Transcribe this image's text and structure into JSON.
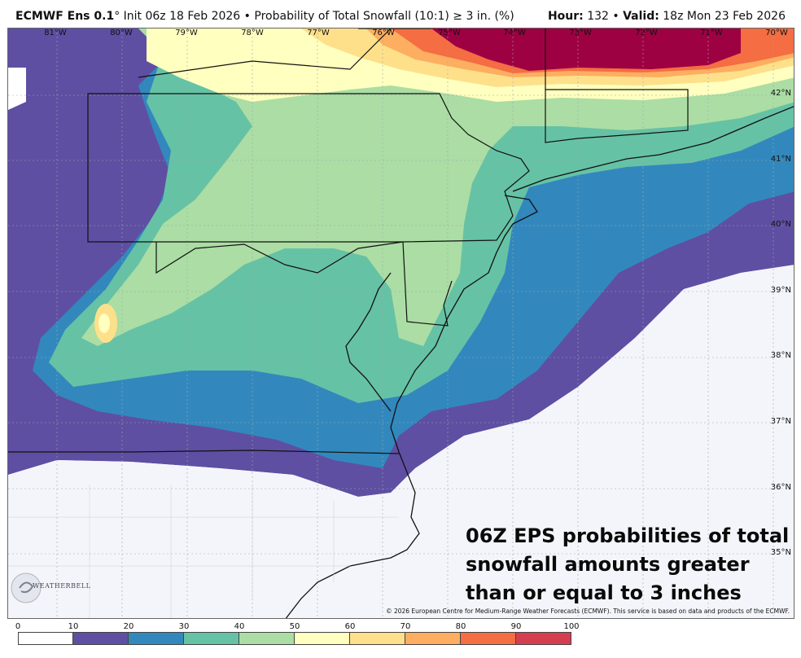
{
  "header": {
    "model": "ECMWF Ens 0.1",
    "degree_mark": "°",
    "init": " Init 06z 18 Feb 2026",
    "separator": " • ",
    "product": "Probability of Total Snowfall (10:1) ≥ 3 in. (%)",
    "hour_label": "Hour:",
    "hour_value": " 132",
    "valid_label": "Valid:",
    "valid_value": " 18z Mon 23 Feb 2026"
  },
  "map": {
    "longitude_labels": [
      "81°W",
      "80°W",
      "79°W",
      "78°W",
      "77°W",
      "76°W",
      "75°W",
      "74°W",
      "73°W",
      "72°W",
      "71°W",
      "70°W"
    ],
    "latitude_labels": [
      "42°N",
      "41°N",
      "40°N",
      "39°N",
      "38°N",
      "37°N",
      "36°N",
      "35°N"
    ],
    "annotation_lines": [
      "06Z EPS probabilities of total",
      "snowfall amounts greater",
      "than or equal to 3 inches"
    ],
    "copyright": "© 2026 European Centre for Medium-Range Weather Forecasts (ECMWF). This service is based on data and products of the ECMWF.",
    "logo_text": "WEATHERBELL"
  },
  "colorbar": {
    "ticks": [
      "0",
      "10",
      "20",
      "30",
      "40",
      "50",
      "60",
      "70",
      "80",
      "90",
      "100"
    ],
    "colors": [
      "#ffffff",
      "#5e4fa2",
      "#3288bd",
      "#66c2a5",
      "#abdda4",
      "#ffffbf",
      "#fee08b",
      "#fdae61",
      "#f46d43",
      "#d53e4f",
      "#9e0142"
    ]
  }
}
